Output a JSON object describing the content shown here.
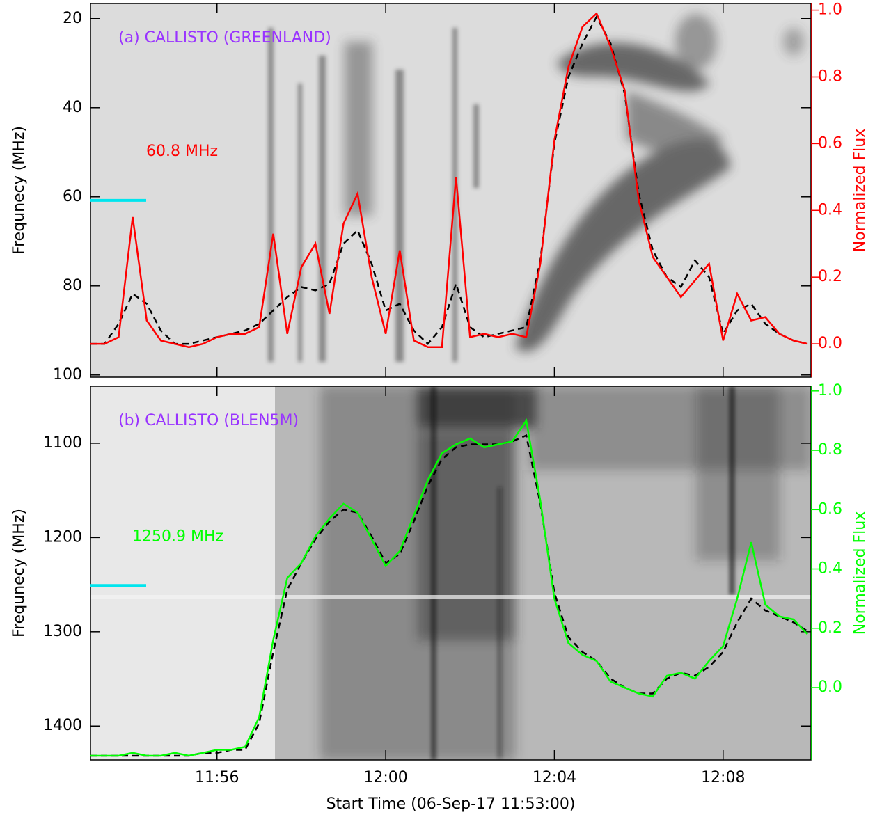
{
  "chart_data": [
    {
      "type": "line",
      "title": "(a) CALLISTO (GREENLAND)",
      "title_color": "#9933ff",
      "ylabel": "Frequnecy (MHz)",
      "y2label": "Normalized Flux",
      "ylim": [
        100.5,
        16.6
      ],
      "yticks": [
        20,
        40,
        60,
        80,
        100
      ],
      "y2lim": [
        -0.1,
        1.02
      ],
      "y2ticks": [
        {
          "value": 0,
          "label": "0.0"
        },
        0.2,
        0.4,
        0.6,
        0.8,
        {
          "value": 1,
          "label": "1.0"
        }
      ],
      "xlim": [
        "11:53:00",
        "12:10:05"
      ],
      "xticks": [
        "11:56",
        "12:00",
        "12:04",
        "12:08"
      ],
      "marker_freq": 60.8,
      "marker_color": "#00e5ee",
      "x": [
        "11:53:00",
        "11:53:20",
        "11:53:40",
        "11:54:00",
        "11:54:20",
        "11:54:40",
        "11:55:00",
        "11:55:20",
        "11:55:40",
        "11:56:00",
        "11:56:20",
        "11:56:40",
        "11:57:00",
        "11:57:20",
        "11:57:40",
        "11:58:00",
        "11:58:20",
        "11:58:40",
        "11:59:00",
        "11:59:20",
        "11:59:40",
        "12:00:00",
        "12:00:20",
        "12:00:40",
        "12:01:00",
        "12:01:20",
        "12:01:40",
        "12:02:00",
        "12:02:20",
        "12:02:40",
        "12:03:00",
        "12:03:20",
        "12:03:40",
        "12:04:00",
        "12:04:20",
        "12:04:40",
        "12:05:00",
        "12:05:20",
        "12:05:40",
        "12:06:00",
        "12:06:20",
        "12:06:40",
        "12:07:00",
        "12:07:20",
        "12:07:40",
        "12:08:00",
        "12:08:20",
        "12:08:40",
        "12:09:00",
        "12:09:20",
        "12:09:40",
        "12:10:00"
      ],
      "series": [
        {
          "name": "60.8 MHz",
          "color": "#ff0000",
          "axis": "y2",
          "dashed": false,
          "values": [
            0.0,
            0.0,
            0.02,
            0.38,
            0.07,
            0.01,
            0.0,
            -0.01,
            0.0,
            0.02,
            0.03,
            0.03,
            0.05,
            0.33,
            0.03,
            0.23,
            0.3,
            0.09,
            0.36,
            0.45,
            0.2,
            0.03,
            0.28,
            0.01,
            -0.01,
            -0.01,
            0.5,
            0.02,
            0.03,
            0.02,
            0.03,
            0.02,
            0.24,
            0.61,
            0.83,
            0.95,
            0.99,
            0.89,
            0.76,
            0.43,
            0.26,
            0.2,
            0.14,
            0.19,
            0.24,
            0.01,
            0.15,
            0.07,
            0.08,
            0.03,
            0.01,
            0.0
          ]
        },
        {
          "color": "#000000",
          "axis": "y2",
          "dashed": true,
          "values": [
            0.0,
            0.0,
            0.06,
            0.15,
            0.12,
            0.04,
            0.0,
            0.0,
            0.01,
            0.02,
            0.03,
            0.04,
            0.06,
            0.1,
            0.14,
            0.17,
            0.16,
            0.18,
            0.3,
            0.34,
            0.24,
            0.1,
            0.12,
            0.04,
            0.0,
            0.05,
            0.18,
            0.05,
            0.02,
            0.03,
            0.04,
            0.05,
            0.25,
            0.6,
            0.8,
            0.9,
            0.98,
            0.9,
            0.75,
            0.45,
            0.28,
            0.2,
            0.17,
            0.25,
            0.2,
            0.03,
            0.1,
            0.12,
            0.06,
            0.03,
            0.01,
            0.0
          ]
        }
      ]
    },
    {
      "type": "line",
      "title": "(b) CALLISTO (BLEN5M)",
      "title_color": "#9933ff",
      "ylabel": "Frequnecy (MHz)",
      "y2label": "Normalized Flux",
      "xlabel": "Start Time (06-Sep-17 11:53:00)",
      "ylim": [
        1436,
        1039.5
      ],
      "yticks": [
        1100,
        1200,
        1300,
        1400
      ],
      "y2lim": [
        -0.244,
        1.016
      ],
      "y2ticks": [
        {
          "value": 0,
          "label": "0.0"
        },
        0.2,
        0.4,
        0.6,
        0.8,
        {
          "value": 1,
          "label": "1.0"
        }
      ],
      "xlim": [
        "11:53:00",
        "12:10:05"
      ],
      "xticks": [
        "11:56",
        "12:00",
        "12:04",
        "12:08"
      ],
      "marker_freq": 1250.9,
      "marker_color": "#00e5ee",
      "x": [
        "11:53:00",
        "11:53:20",
        "11:53:40",
        "11:54:00",
        "11:54:20",
        "11:54:40",
        "11:55:00",
        "11:55:20",
        "11:55:40",
        "11:56:00",
        "11:56:20",
        "11:56:40",
        "11:57:00",
        "11:57:20",
        "11:57:40",
        "11:58:00",
        "11:58:20",
        "11:58:40",
        "11:59:00",
        "11:59:20",
        "11:59:40",
        "12:00:00",
        "12:00:20",
        "12:00:40",
        "12:01:00",
        "12:01:20",
        "12:01:40",
        "12:02:00",
        "12:02:20",
        "12:02:40",
        "12:03:00",
        "12:03:20",
        "12:03:40",
        "12:04:00",
        "12:04:20",
        "12:04:40",
        "12:05:00",
        "12:05:20",
        "12:05:40",
        "12:06:00",
        "12:06:20",
        "12:06:40",
        "12:07:00",
        "12:07:20",
        "12:07:40",
        "12:08:00",
        "12:08:20",
        "12:08:40",
        "12:09:00",
        "12:09:20",
        "12:09:40",
        "12:10:00"
      ],
      "series": [
        {
          "name": "1250.9 MHz",
          "color": "#00ff00",
          "axis": "y2",
          "dashed": false,
          "values": [
            -0.23,
            -0.23,
            -0.23,
            -0.22,
            -0.23,
            -0.23,
            -0.22,
            -0.23,
            -0.22,
            -0.21,
            -0.21,
            -0.2,
            -0.1,
            0.16,
            0.37,
            0.42,
            0.51,
            0.57,
            0.62,
            0.59,
            0.5,
            0.41,
            0.46,
            0.58,
            0.7,
            0.79,
            0.82,
            0.84,
            0.81,
            0.82,
            0.83,
            0.9,
            0.63,
            0.3,
            0.15,
            0.11,
            0.09,
            0.02,
            0.0,
            -0.02,
            -0.03,
            0.04,
            0.05,
            0.03,
            0.09,
            0.14,
            0.3,
            0.49,
            0.28,
            0.24,
            0.23,
            0.18
          ]
        },
        {
          "color": "#000000",
          "axis": "y2",
          "dashed": true,
          "values": [
            -0.23,
            -0.23,
            -0.23,
            -0.23,
            -0.23,
            -0.23,
            -0.23,
            -0.23,
            -0.22,
            -0.22,
            -0.21,
            -0.21,
            -0.12,
            0.12,
            0.33,
            0.42,
            0.5,
            0.56,
            0.6,
            0.59,
            0.51,
            0.42,
            0.45,
            0.56,
            0.68,
            0.77,
            0.81,
            0.82,
            0.82,
            0.82,
            0.83,
            0.85,
            0.62,
            0.32,
            0.17,
            0.12,
            0.09,
            0.03,
            0.0,
            -0.02,
            -0.02,
            0.03,
            0.05,
            0.04,
            0.07,
            0.12,
            0.22,
            0.3,
            0.26,
            0.24,
            0.22,
            0.19
          ]
        }
      ]
    }
  ]
}
